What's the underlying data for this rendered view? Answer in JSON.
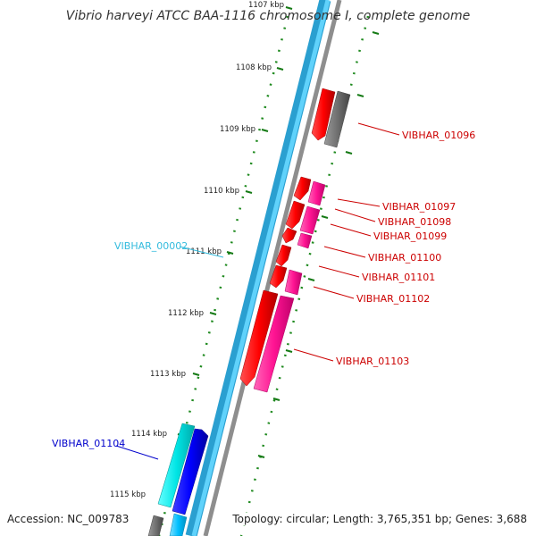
{
  "title": "Vibrio harveyi ATCC BAA-1116 chromosome I, complete genome",
  "footer": {
    "accession": "Accession: NC_009783",
    "summary": "Topology: circular; Length: 3,765,351 bp; Genes: 3,688"
  },
  "colors": {
    "backbone_outer": "#2a9fd0",
    "backbone_inner": "#4dc8f5",
    "backbone_edge": "#9a9a9a",
    "tick": "#157a15",
    "pseudogene": "#7a7a7a",
    "forward_gene": "#ff0000",
    "forward_rna": "#ff1493",
    "reverse_feature": "#00bfff",
    "rna_cyan": "#00e5e5",
    "gene_blue": "#0000ff"
  },
  "kbp_ticks": [
    "1107 kbp",
    "1108 kbp",
    "1109 kbp",
    "1110 kbp",
    "1111 kbp",
    "1112 kbp",
    "1113 kbp",
    "1114 kbp",
    "1115 kbp"
  ],
  "features": [
    {
      "name": "VIBHAR_01096",
      "color": "#cc0000"
    },
    {
      "name": "VIBHAR_01097",
      "color": "#cc0000"
    },
    {
      "name": "VIBHAR_01098",
      "color": "#cc0000"
    },
    {
      "name": "VIBHAR_01099",
      "color": "#cc0000"
    },
    {
      "name": "VIBHAR_01100",
      "color": "#cc0000"
    },
    {
      "name": "VIBHAR_01101",
      "color": "#cc0000"
    },
    {
      "name": "VIBHAR_01102",
      "color": "#cc0000"
    },
    {
      "name": "VIBHAR_01103",
      "color": "#cc0000"
    },
    {
      "name": "VIBHAR_00002",
      "color": "#33bbdd"
    },
    {
      "name": "VIBHAR_01104",
      "color": "#0000cc"
    }
  ]
}
